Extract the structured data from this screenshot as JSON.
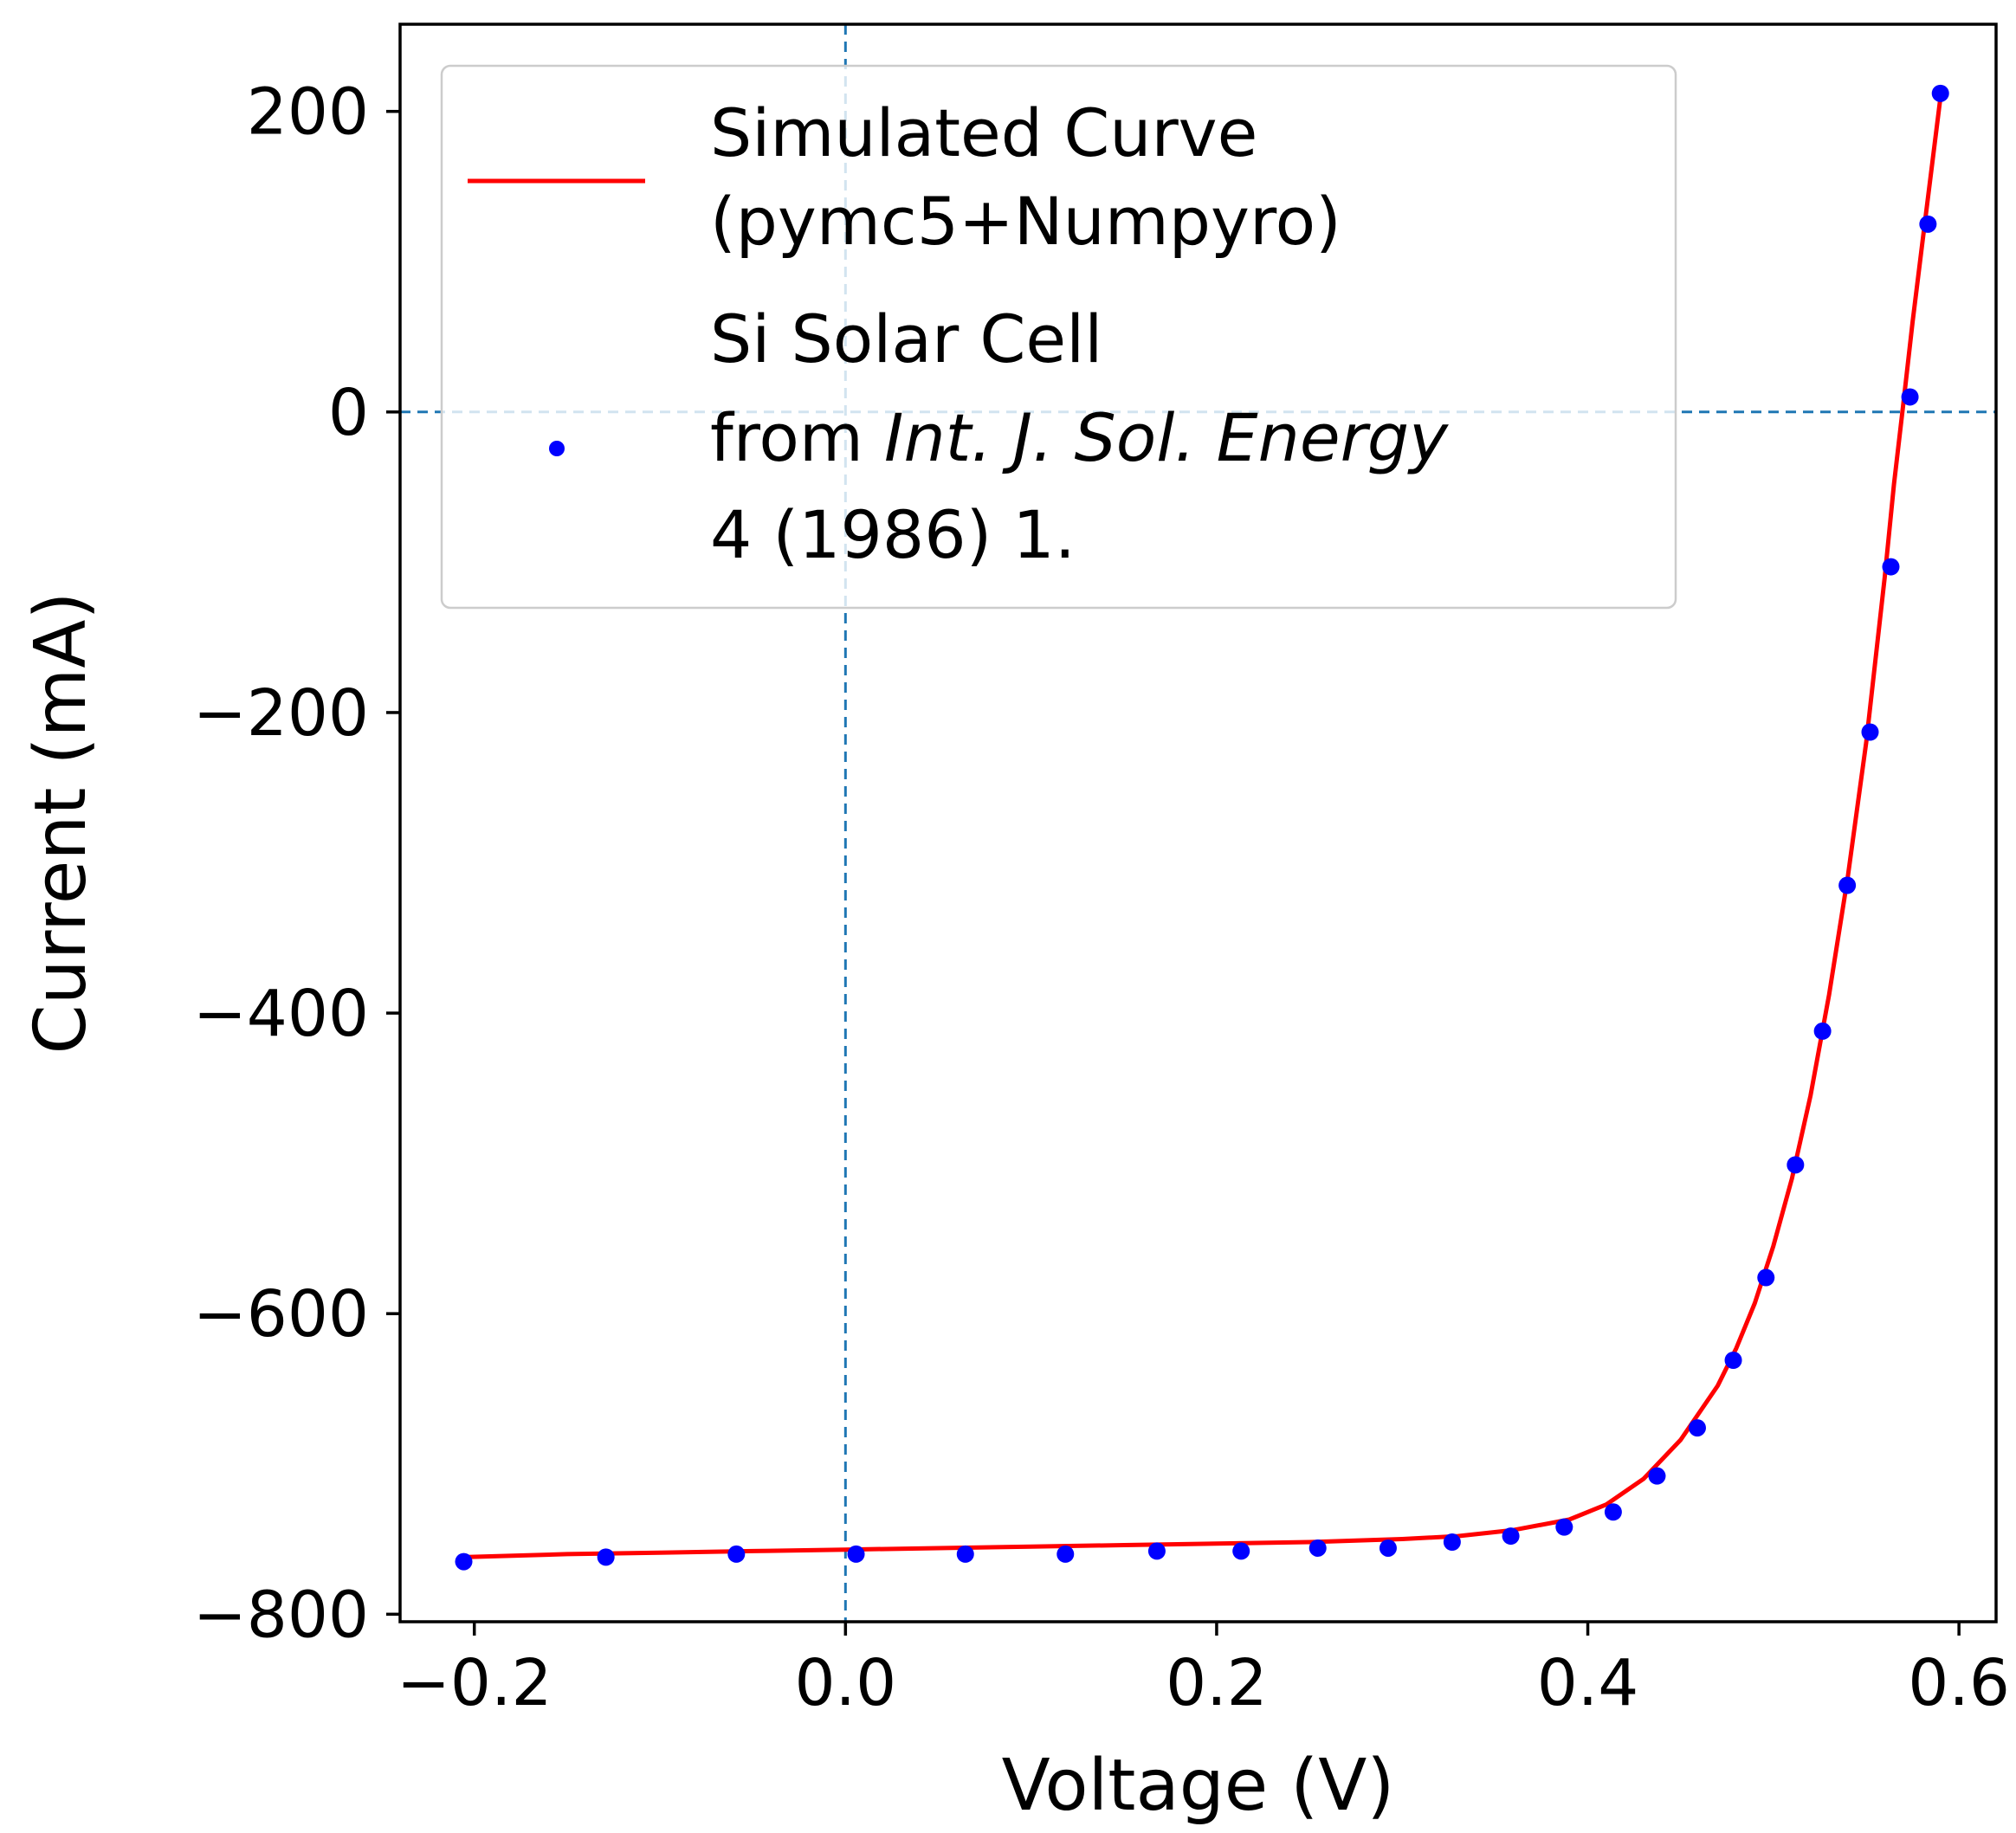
{
  "chart_data": {
    "type": "scatter+line",
    "title": "",
    "xlabel": "Voltage (V)",
    "ylabel": "Current (mA)",
    "xlim": [
      -0.24,
      0.62
    ],
    "ylim": [
      -805,
      258
    ],
    "xticks": [
      -0.2,
      0.0,
      0.2,
      0.4,
      0.6
    ],
    "xtick_labels": [
      "−0.2",
      "0.0",
      "0.2",
      "0.4",
      "0.6"
    ],
    "yticks": [
      200,
      0,
      -200,
      -400,
      -600,
      -800
    ],
    "ytick_labels": [
      "200",
      "0",
      "−200",
      "−400",
      "−600",
      "−800"
    ],
    "reference_lines": {
      "x": 0,
      "y": 0,
      "style": "dashed",
      "color": "#1f77b4"
    },
    "grid": false,
    "legend_position": "top-left",
    "series": [
      {
        "name": "Simulated Curve (pymc5+Numpyro)",
        "legend_lines": [
          "Simulated Curve",
          "(pymc5+Numpyro)"
        ],
        "kind": "line",
        "color": "#ff0000",
        "x": [
          -0.2057,
          -0.15,
          -0.1,
          -0.05,
          0.0,
          0.05,
          0.1,
          0.15,
          0.2,
          0.25,
          0.3,
          0.33,
          0.36,
          0.39,
          0.41,
          0.43,
          0.45,
          0.47,
          0.48,
          0.49,
          0.5,
          0.51,
          0.52,
          0.53,
          0.54,
          0.55,
          0.56,
          0.565,
          0.57,
          0.575,
          0.58,
          0.5901
        ],
        "y": [
          -762,
          -760,
          -759,
          -758,
          -757,
          -756,
          -755,
          -754,
          -753,
          -752,
          -750,
          -748,
          -744,
          -737,
          -727,
          -710,
          -684,
          -648,
          -623,
          -593,
          -555,
          -510,
          -455,
          -388,
          -310,
          -220,
          -110,
          -48,
          5,
          60,
          110,
          210
        ]
      },
      {
        "name": "Si Solar Cell from Int. J. Sol. Energy 4 (1986) 1.",
        "legend_lines": [
          "Si Solar Cell",
          "from ",
          "4 (1986) 1."
        ],
        "legend_italic": "Int. J. Sol. Energy",
        "kind": "scatter",
        "color": "#0000ff",
        "x": [
          -0.2057,
          -0.1291,
          -0.0588,
          0.0057,
          0.0646,
          0.1185,
          0.1678,
          0.2132,
          0.2545,
          0.2924,
          0.3269,
          0.3585,
          0.3873,
          0.4137,
          0.4373,
          0.459,
          0.4784,
          0.496,
          0.5119,
          0.5265,
          0.5398,
          0.5521,
          0.5633,
          0.5736,
          0.5833,
          0.59
        ],
        "y": [
          -765,
          -762,
          -760,
          -760,
          -760,
          -760,
          -758,
          -758,
          -756,
          -756,
          -752,
          -748,
          -742,
          -732,
          -708,
          -676,
          -631,
          -576,
          -501,
          -412,
          -315,
          -213,
          -103,
          10,
          125,
          212
        ]
      }
    ]
  }
}
